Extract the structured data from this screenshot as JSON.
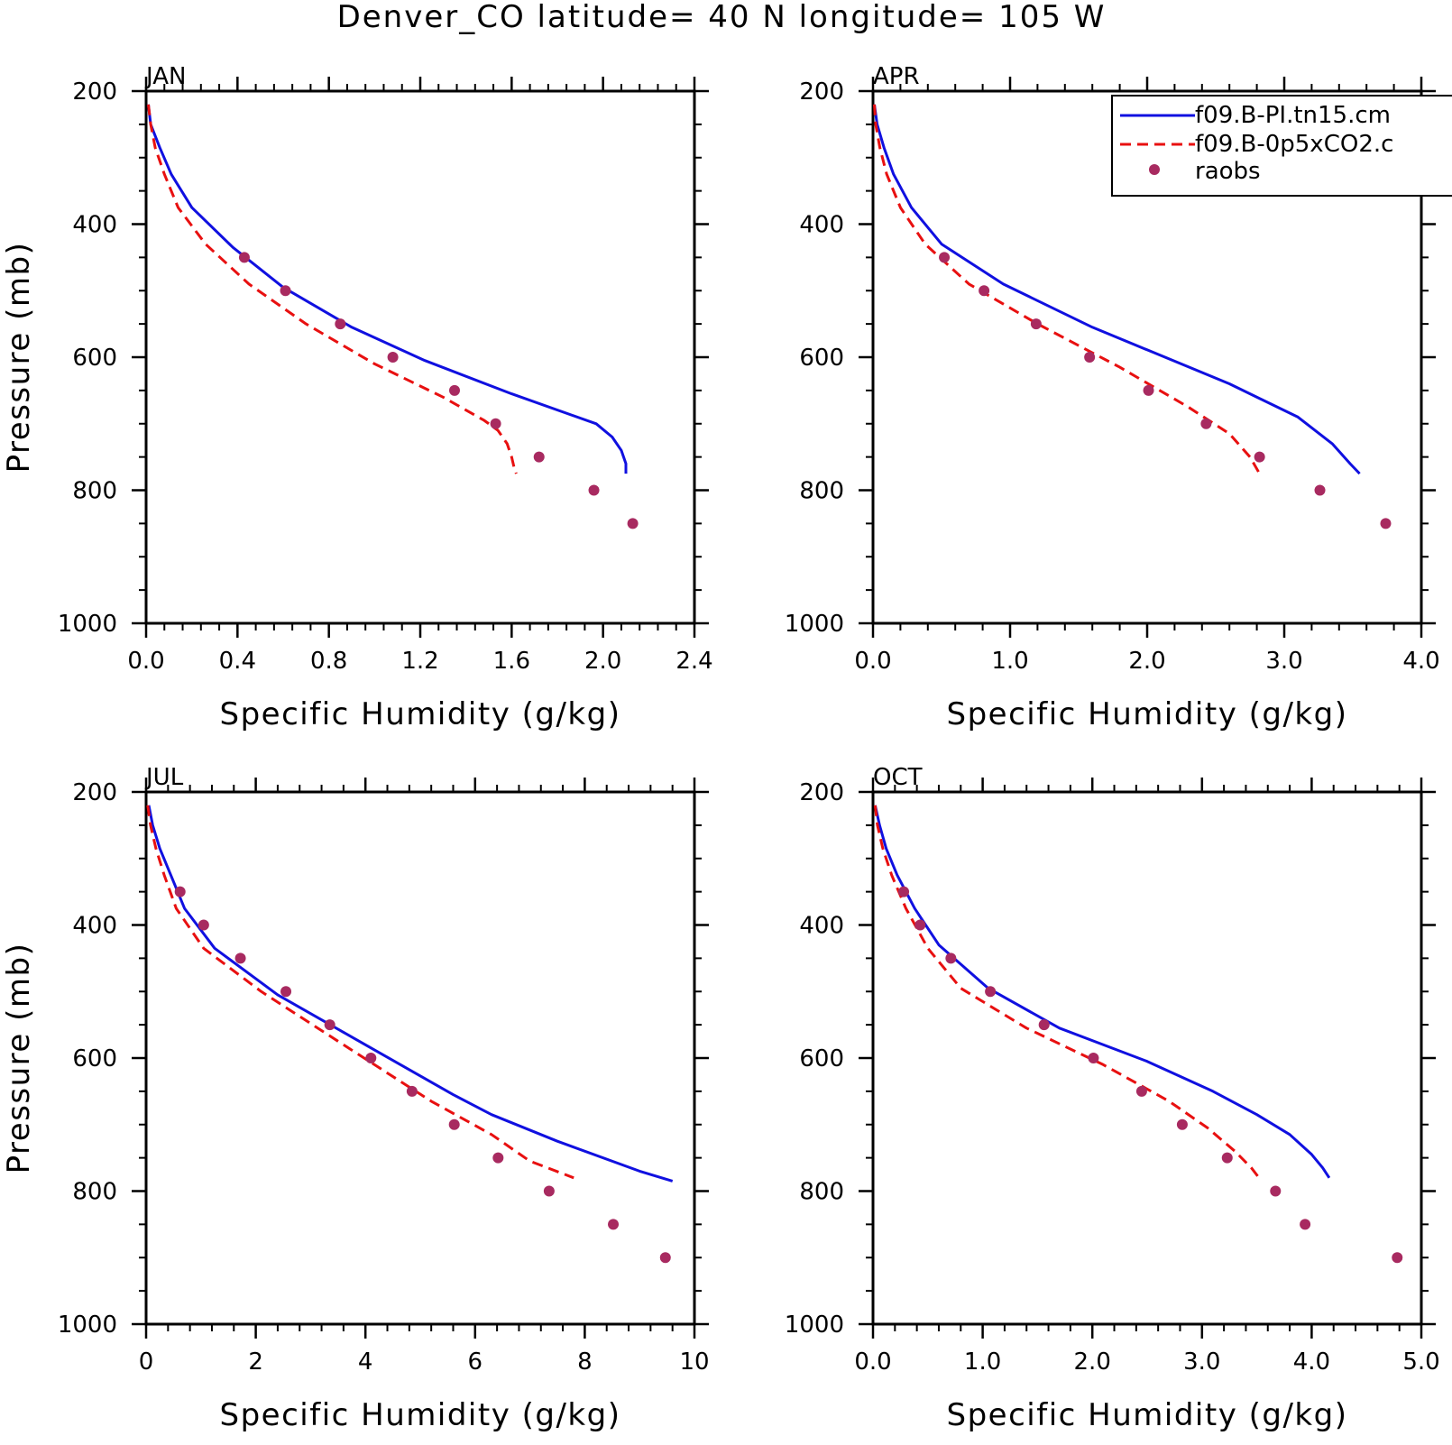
{
  "figure": {
    "title": "Denver_CO  latitude= 40 N longitude= 105 W",
    "legend": {
      "placement": "top-right of APR panel",
      "entries": [
        {
          "label": "f09.B-PI.tn15.cm",
          "style": "solid",
          "color": "#1010e0"
        },
        {
          "label": "f09.B-0p5xCO2.c",
          "style": "dashed",
          "color": "#e81010"
        },
        {
          "label": "raobs",
          "style": "marker",
          "color": "#a82a60"
        }
      ]
    },
    "colors": {
      "model1": "#1010e0",
      "model2": "#e81010",
      "obs": "#a82a60"
    }
  },
  "chart_data": [
    {
      "type": "line",
      "panel": "JAN",
      "xlabel": "Specific Humidity (g/kg)",
      "ylabel": "Pressure (mb)",
      "xlim": [
        0,
        2.4
      ],
      "ylim": [
        200,
        1000
      ],
      "y_inverted": true,
      "xticks": [
        0,
        0.4,
        0.8,
        1.2,
        1.6,
        2.0,
        2.4
      ],
      "xtick_labels": [
        "0.0",
        "0.4",
        "0.8",
        "1.2",
        "1.6",
        "2.0",
        "2.4"
      ],
      "yticks": [
        200,
        400,
        600,
        800,
        1000
      ],
      "ytick_labels": [
        "200",
        "400",
        "600",
        "800",
        "1000"
      ],
      "series": [
        {
          "name": "f09.B-PI.tn15.cm",
          "x": [
            0.01,
            0.02,
            0.06,
            0.11,
            0.2,
            0.38,
            0.6,
            0.9,
            1.22,
            1.6,
            1.97,
            2.04,
            2.08,
            2.1,
            2.1
          ],
          "y": [
            220,
            250,
            285,
            325,
            375,
            435,
            495,
            555,
            605,
            655,
            700,
            720,
            740,
            760,
            775
          ]
        },
        {
          "name": "f09.B-0p5xCO2.c",
          "x": [
            0.01,
            0.02,
            0.04,
            0.08,
            0.14,
            0.26,
            0.45,
            0.7,
            1.0,
            1.3,
            1.48,
            1.54,
            1.58,
            1.6,
            1.61,
            1.62
          ],
          "y": [
            220,
            250,
            285,
            325,
            375,
            430,
            490,
            550,
            610,
            660,
            695,
            710,
            730,
            750,
            765,
            775
          ]
        },
        {
          "name": "raobs",
          "x": [
            0.43,
            0.61,
            0.85,
            1.08,
            1.35,
            1.53,
            1.72,
            1.96,
            2.13
          ],
          "y": [
            450,
            500,
            550,
            600,
            650,
            700,
            750,
            800,
            850
          ]
        }
      ]
    },
    {
      "type": "line",
      "panel": "APR",
      "xlabel": "Specific Humidity (g/kg)",
      "ylabel": "",
      "xlim": [
        0,
        4.0
      ],
      "ylim": [
        200,
        1000
      ],
      "y_inverted": true,
      "xticks": [
        0,
        1,
        2,
        3,
        4
      ],
      "xtick_labels": [
        "0.0",
        "1.0",
        "2.0",
        "3.0",
        "4.0"
      ],
      "yticks": [
        200,
        400,
        600,
        800,
        1000
      ],
      "ytick_labels": [
        "200",
        "400",
        "600",
        "800",
        "1000"
      ],
      "series": [
        {
          "name": "f09.B-PI.tn15.cm",
          "x": [
            0.01,
            0.03,
            0.08,
            0.15,
            0.28,
            0.5,
            0.95,
            1.6,
            2.6,
            3.1,
            3.35,
            3.48,
            3.55
          ],
          "y": [
            220,
            250,
            285,
            325,
            375,
            430,
            490,
            555,
            640,
            690,
            730,
            760,
            775
          ]
        },
        {
          "name": "f09.B-0p5xCO2.c",
          "x": [
            0.01,
            0.02,
            0.05,
            0.1,
            0.2,
            0.38,
            0.7,
            1.2,
            1.8,
            2.3,
            2.6,
            2.75,
            2.82
          ],
          "y": [
            220,
            250,
            285,
            325,
            375,
            430,
            490,
            550,
            615,
            675,
            715,
            750,
            775
          ]
        },
        {
          "name": "raobs",
          "x": [
            0.52,
            0.81,
            1.19,
            1.58,
            2.01,
            2.43,
            2.82,
            3.26,
            3.74
          ],
          "y": [
            450,
            500,
            550,
            600,
            650,
            700,
            750,
            800,
            850
          ]
        }
      ]
    },
    {
      "type": "line",
      "panel": "JUL",
      "xlabel": "Specific Humidity (g/kg)",
      "ylabel": "Pressure (mb)",
      "xlim": [
        0,
        10
      ],
      "ylim": [
        200,
        1000
      ],
      "y_inverted": true,
      "xticks": [
        0,
        2,
        4,
        6,
        8,
        10
      ],
      "xtick_labels": [
        "0",
        "2",
        "4",
        "6",
        "8",
        "10"
      ],
      "yticks": [
        200,
        400,
        600,
        800,
        1000
      ],
      "ytick_labels": [
        "200",
        "400",
        "600",
        "800",
        "1000"
      ],
      "series": [
        {
          "name": "f09.B-PI.tn15.cm",
          "x": [
            0.05,
            0.12,
            0.25,
            0.45,
            0.7,
            1.25,
            2.4,
            4.0,
            5.6,
            6.3,
            7.5,
            9.0,
            9.6
          ],
          "y": [
            220,
            250,
            285,
            325,
            375,
            435,
            505,
            580,
            655,
            685,
            725,
            770,
            785
          ]
        },
        {
          "name": "f09.B-0p5xCO2.c",
          "x": [
            0.03,
            0.08,
            0.18,
            0.33,
            0.55,
            1.05,
            2.1,
            3.6,
            5.2,
            6.3,
            7.0,
            7.8
          ],
          "y": [
            220,
            250,
            285,
            325,
            375,
            435,
            500,
            580,
            665,
            715,
            755,
            780
          ]
        },
        {
          "name": "raobs",
          "x": [
            0.62,
            1.05,
            1.72,
            2.55,
            3.35,
            4.1,
            4.85,
            5.62,
            6.42,
            7.35,
            8.52,
            9.47
          ],
          "y": [
            350,
            400,
            450,
            500,
            550,
            600,
            650,
            700,
            750,
            800,
            850,
            900
          ]
        }
      ]
    },
    {
      "type": "line",
      "panel": "OCT",
      "xlabel": "Specific Humidity (g/kg)",
      "ylabel": "",
      "xlim": [
        0,
        5.0
      ],
      "ylim": [
        200,
        1000
      ],
      "y_inverted": true,
      "xticks": [
        0,
        1,
        2,
        3,
        4,
        5
      ],
      "xtick_labels": [
        "0.0",
        "1.0",
        "2.0",
        "3.0",
        "4.0",
        "5.0"
      ],
      "yticks": [
        200,
        400,
        600,
        800,
        1000
      ],
      "ytick_labels": [
        "200",
        "400",
        "600",
        "800",
        "1000"
      ],
      "series": [
        {
          "name": "f09.B-PI.tn15.cm",
          "x": [
            0.02,
            0.06,
            0.12,
            0.22,
            0.38,
            0.6,
            1.05,
            1.7,
            2.5,
            3.1,
            3.5,
            3.8,
            4.0,
            4.1,
            4.16
          ],
          "y": [
            220,
            250,
            285,
            325,
            375,
            430,
            495,
            555,
            605,
            650,
            685,
            715,
            745,
            765,
            780
          ]
        },
        {
          "name": "f09.B-0p5xCO2.c",
          "x": [
            0.02,
            0.04,
            0.09,
            0.17,
            0.3,
            0.5,
            0.8,
            1.4,
            2.1,
            2.7,
            3.05,
            3.3,
            3.45,
            3.52
          ],
          "y": [
            220,
            250,
            285,
            325,
            375,
            435,
            495,
            555,
            610,
            665,
            705,
            740,
            765,
            780
          ]
        },
        {
          "name": "raobs",
          "x": [
            0.28,
            0.43,
            0.71,
            1.07,
            1.56,
            2.01,
            2.45,
            2.82,
            3.23,
            3.67,
            3.94,
            4.78
          ],
          "y": [
            350,
            400,
            450,
            500,
            550,
            600,
            650,
            700,
            750,
            800,
            850,
            900
          ]
        }
      ]
    }
  ]
}
